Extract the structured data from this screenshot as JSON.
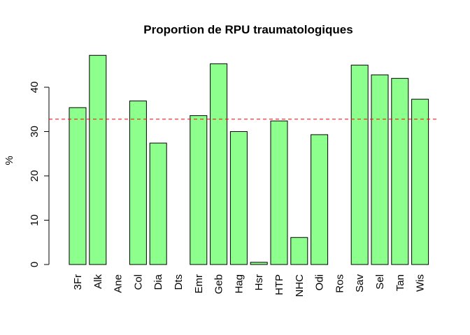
{
  "chart_data": {
    "type": "bar",
    "title": "Proportion de RPU traumatologiques",
    "xlabel": "",
    "ylabel": "%",
    "categories": [
      "3Fr",
      "Alk",
      "Ane",
      "Col",
      "Dia",
      "Dts",
      "Emr",
      "Geb",
      "Hag",
      "Hsr",
      "HTP",
      "NHC",
      "Odi",
      "Ros",
      "Sav",
      "Sel",
      "Tan",
      "Wis"
    ],
    "values": [
      35.4,
      47.2,
      0,
      36.9,
      27.4,
      0,
      33.6,
      45.3,
      30.0,
      0.5,
      32.4,
      6.1,
      29.3,
      0,
      45.0,
      42.8,
      42.0,
      37.3
    ],
    "yticks": [
      0,
      10,
      20,
      30,
      40
    ],
    "ylim": [
      0,
      50
    ],
    "reference_line": 32.8,
    "grid": false,
    "bar_color": "#8cff8c",
    "bar_border_color": "#000000",
    "reference_line_color": "#ff0000"
  }
}
